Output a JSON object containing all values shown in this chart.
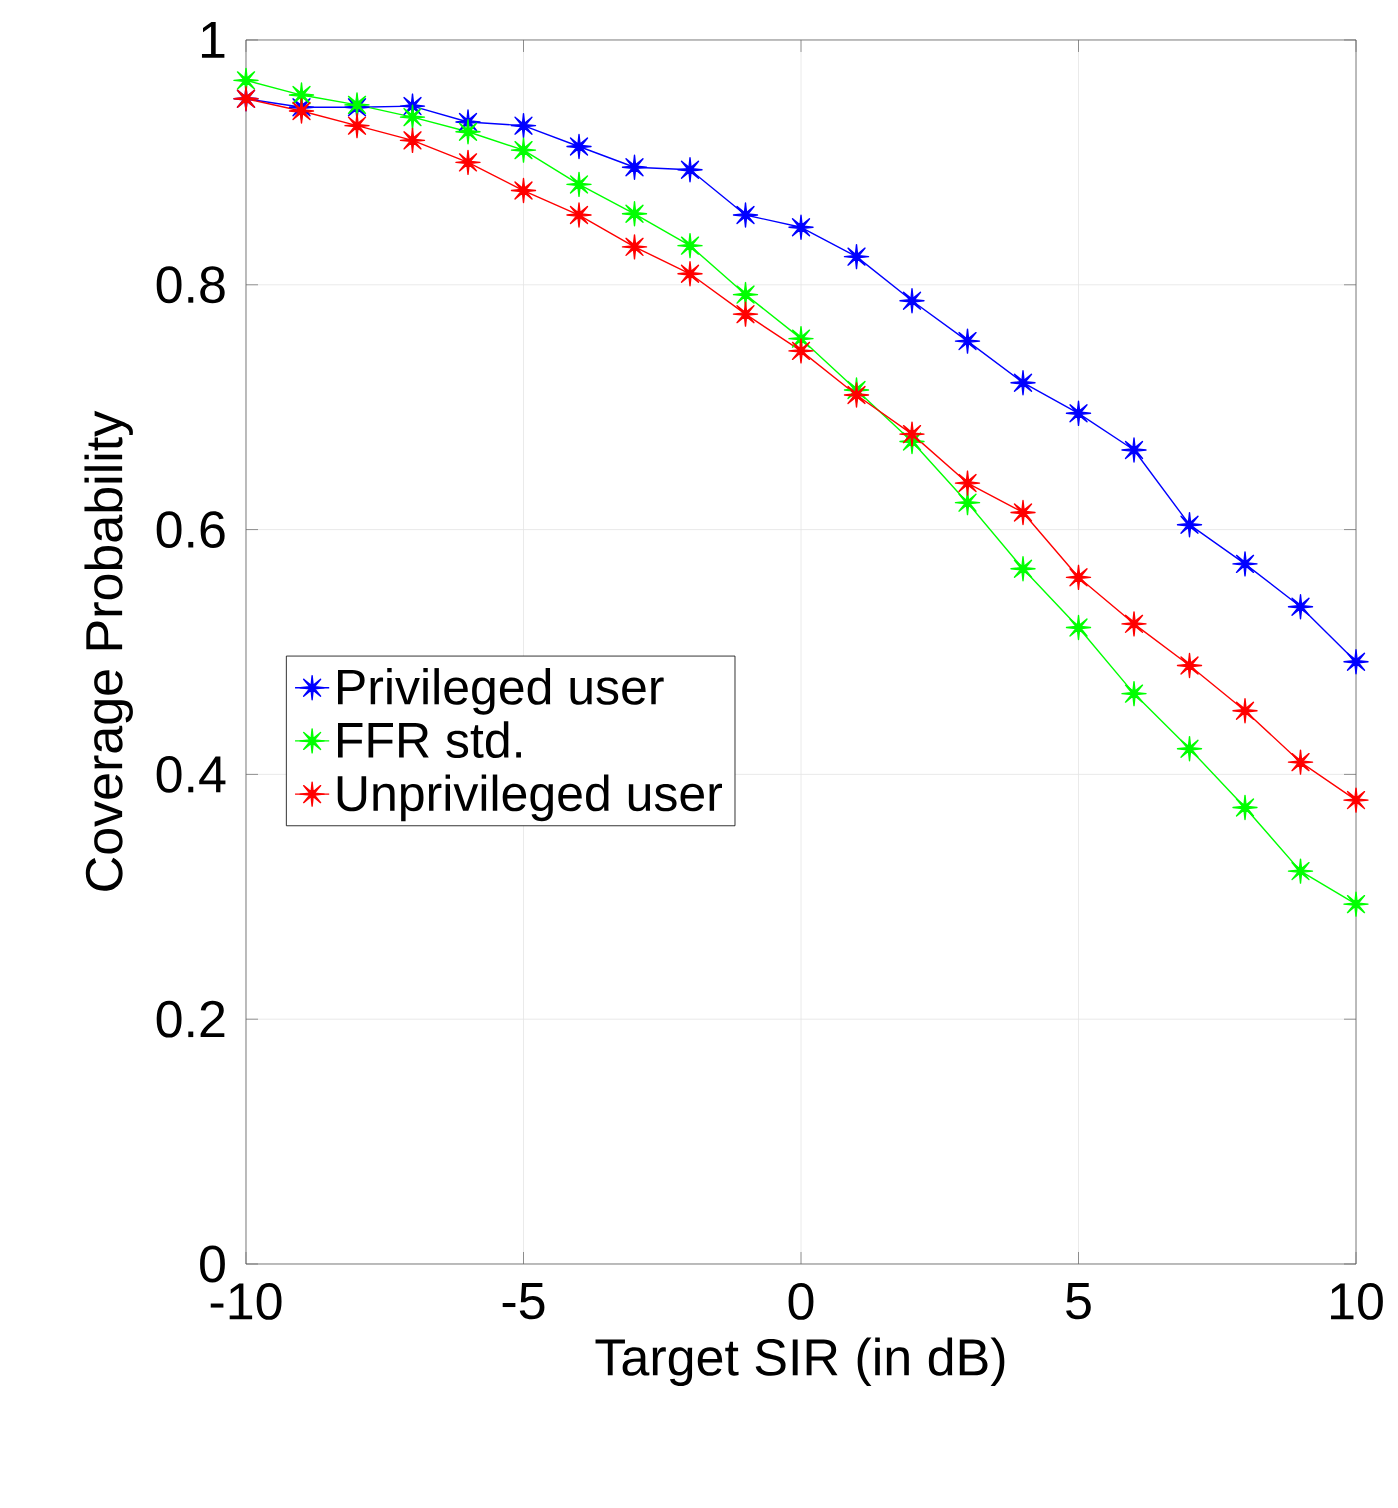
{
  "chart_data": {
    "type": "line",
    "xlabel": "Target SIR (in dB)",
    "ylabel": "Coverage Probability",
    "x": [
      -10,
      -9,
      -8,
      -7,
      -6,
      -5,
      -4,
      -3,
      -2,
      -1,
      0,
      1,
      2,
      3,
      4,
      5,
      6,
      7,
      8,
      9,
      10
    ],
    "series": [
      {
        "name": "Privileged user",
        "color": "#0000ff",
        "values": [
          0.952,
          0.945,
          0.945,
          0.946,
          0.933,
          0.93,
          0.913,
          0.896,
          0.894,
          0.857,
          0.847,
          0.823,
          0.787,
          0.754,
          0.72,
          0.695,
          0.665,
          0.604,
          0.572,
          0.537,
          0.492
        ]
      },
      {
        "name": "FFR std.",
        "color": "#00ff00",
        "values": [
          0.967,
          0.955,
          0.947,
          0.937,
          0.925,
          0.91,
          0.882,
          0.858,
          0.832,
          0.792,
          0.756,
          0.714,
          0.672,
          0.622,
          0.568,
          0.52,
          0.466,
          0.421,
          0.373,
          0.321,
          0.294
        ]
      },
      {
        "name": "Unprivileged user",
        "color": "#ff0000",
        "values": [
          0.952,
          0.942,
          0.93,
          0.918,
          0.9,
          0.877,
          0.857,
          0.831,
          0.809,
          0.776,
          0.746,
          0.71,
          0.678,
          0.638,
          0.614,
          0.561,
          0.523,
          0.489,
          0.452,
          0.41,
          0.379
        ]
      }
    ],
    "xlim": [
      -10,
      10
    ],
    "xticks": [
      -10,
      -5,
      0,
      5,
      10
    ],
    "ylim": [
      0,
      1
    ],
    "yticks": [
      0,
      0.2,
      0.4,
      0.6,
      0.8,
      1
    ],
    "grid": true,
    "legend": "left",
    "marker": "star",
    "line_style": "solid"
  }
}
